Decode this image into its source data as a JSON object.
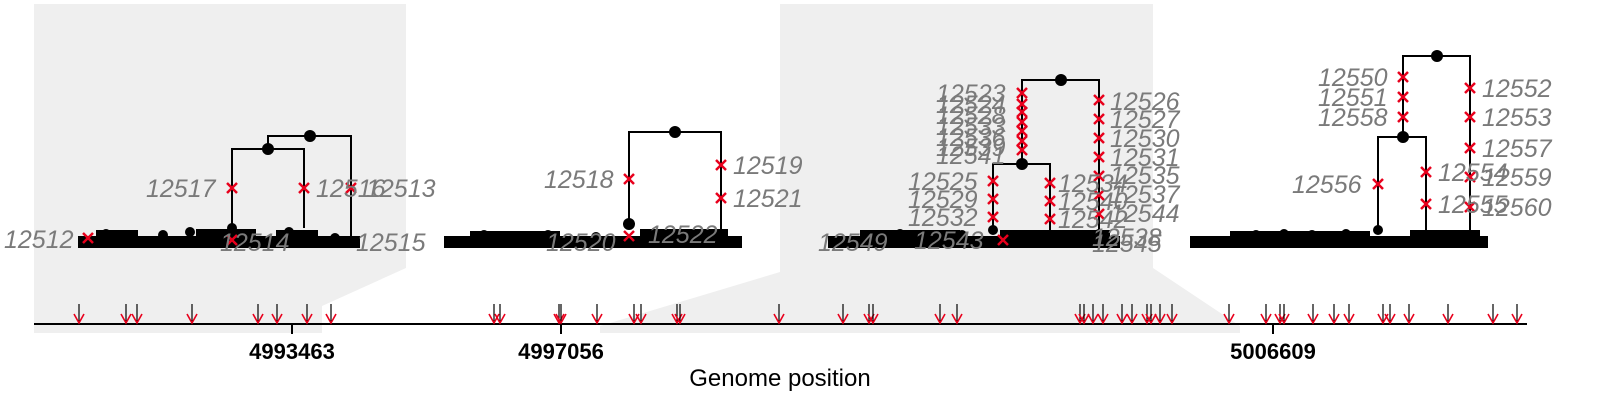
{
  "colors": {
    "shade": "#efefef",
    "mutation": "#e8001c",
    "label": "#7a7a7a",
    "tree": "#000000"
  },
  "axis": {
    "title": "Genome position",
    "ticks": [
      {
        "label": "4993463",
        "value": 4993463
      },
      {
        "label": "4997056",
        "value": 4997056
      },
      {
        "label": "5006609",
        "value": 5006609
      }
    ]
  },
  "trees": [
    {
      "mutation_labels": [
        "12512",
        "12517",
        "12516",
        "12513",
        "12514",
        "12515"
      ]
    },
    {
      "mutation_labels": [
        "12518",
        "12519",
        "12521",
        "12520",
        "12522"
      ]
    },
    {
      "mutation_labels": [
        "12523",
        "12524",
        "12528",
        "12533",
        "12536",
        "12539",
        "12541",
        "12526",
        "12527",
        "12530",
        "12531",
        "12535",
        "12537",
        "12525",
        "12529",
        "12532",
        "12534",
        "12540",
        "12542",
        "12544",
        "12549",
        "12543",
        "12538",
        "12545",
        "12546",
        "12548"
      ]
    },
    {
      "mutation_labels": [
        "12550",
        "12551",
        "12558",
        "12552",
        "12553",
        "12557",
        "12554",
        "12559",
        "12555",
        "12560",
        "12556"
      ]
    }
  ]
}
